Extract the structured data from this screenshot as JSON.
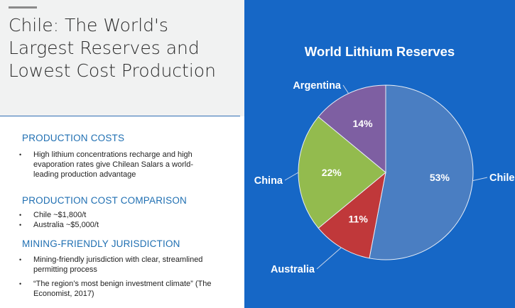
{
  "slide": {
    "title_lines": [
      "Chile: The World's",
      "Largest  Reserves and",
      "Lowest  Cost Production"
    ]
  },
  "sections": [
    {
      "heading": "PRODUCTION COSTS",
      "bullets": [
        "High lithium concentrations recharge and high evaporation rates  give Chilean Salars a world-leading production advantage"
      ]
    },
    {
      "heading": "PRODUCTION COST COMPARISON",
      "bullets": [
        "Chile ~$1,800/t",
        "Australia ~$5,000/t"
      ]
    },
    {
      "heading": "MINING-FRIENDLY JURISDICTION",
      "bullets": [
        "Mining-friendly jurisdiction with clear, streamlined permitting process",
        "“The region’s most benign investment climate” (The Economist, 2017)"
      ]
    }
  ],
  "bullet_glyph": "•",
  "colors": {
    "panel_blue": "#1667c6",
    "heading_blue": "#1f6fb2"
  },
  "chart_data": {
    "type": "pie",
    "title": "World Lithium Reserves",
    "slices": [
      {
        "label": "Chile",
        "value": 53,
        "value_label": "53%",
        "color": "#4a7ec2"
      },
      {
        "label": "Australia",
        "value": 11,
        "value_label": "11%",
        "color": "#c0383a"
      },
      {
        "label": "China",
        "value": 22,
        "value_label": "22%",
        "color": "#93bb4e"
      },
      {
        "label": "Argentina",
        "value": 14,
        "value_label": "14%",
        "color": "#7e5fa2"
      }
    ],
    "legend": "none",
    "data_labels": "inside",
    "category_labels": "outside with leader lines"
  }
}
